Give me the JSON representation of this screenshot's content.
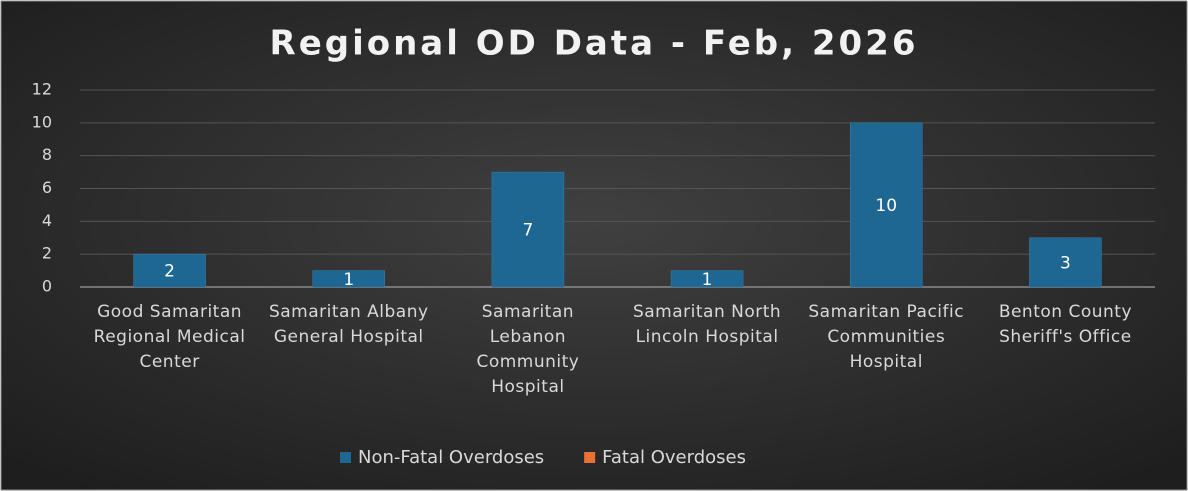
{
  "chart_data": {
    "type": "bar",
    "title": "Regional OD Data - Feb, 2026",
    "categories": [
      "Good Samaritan Regional Medical Center",
      "Samaritan Albany General Hospital",
      "Samaritan Lebanon Community Hospital",
      "Samaritan North Lincoln Hospital",
      "Samaritan Pacific Communities Hospital",
      "Benton County Sheriff's Office"
    ],
    "series": [
      {
        "name": "Non-Fatal Overdoses",
        "color": "#1d6792",
        "values": [
          2,
          1,
          7,
          1,
          10,
          3
        ]
      },
      {
        "name": "Fatal Overdoses",
        "color": "#e97132",
        "values": [
          null,
          null,
          null,
          null,
          null,
          null
        ]
      }
    ],
    "ylim": [
      0,
      12
    ],
    "yticks": [
      0,
      2,
      4,
      6,
      8,
      10,
      12
    ],
    "grid": true,
    "legend": "bottom"
  }
}
